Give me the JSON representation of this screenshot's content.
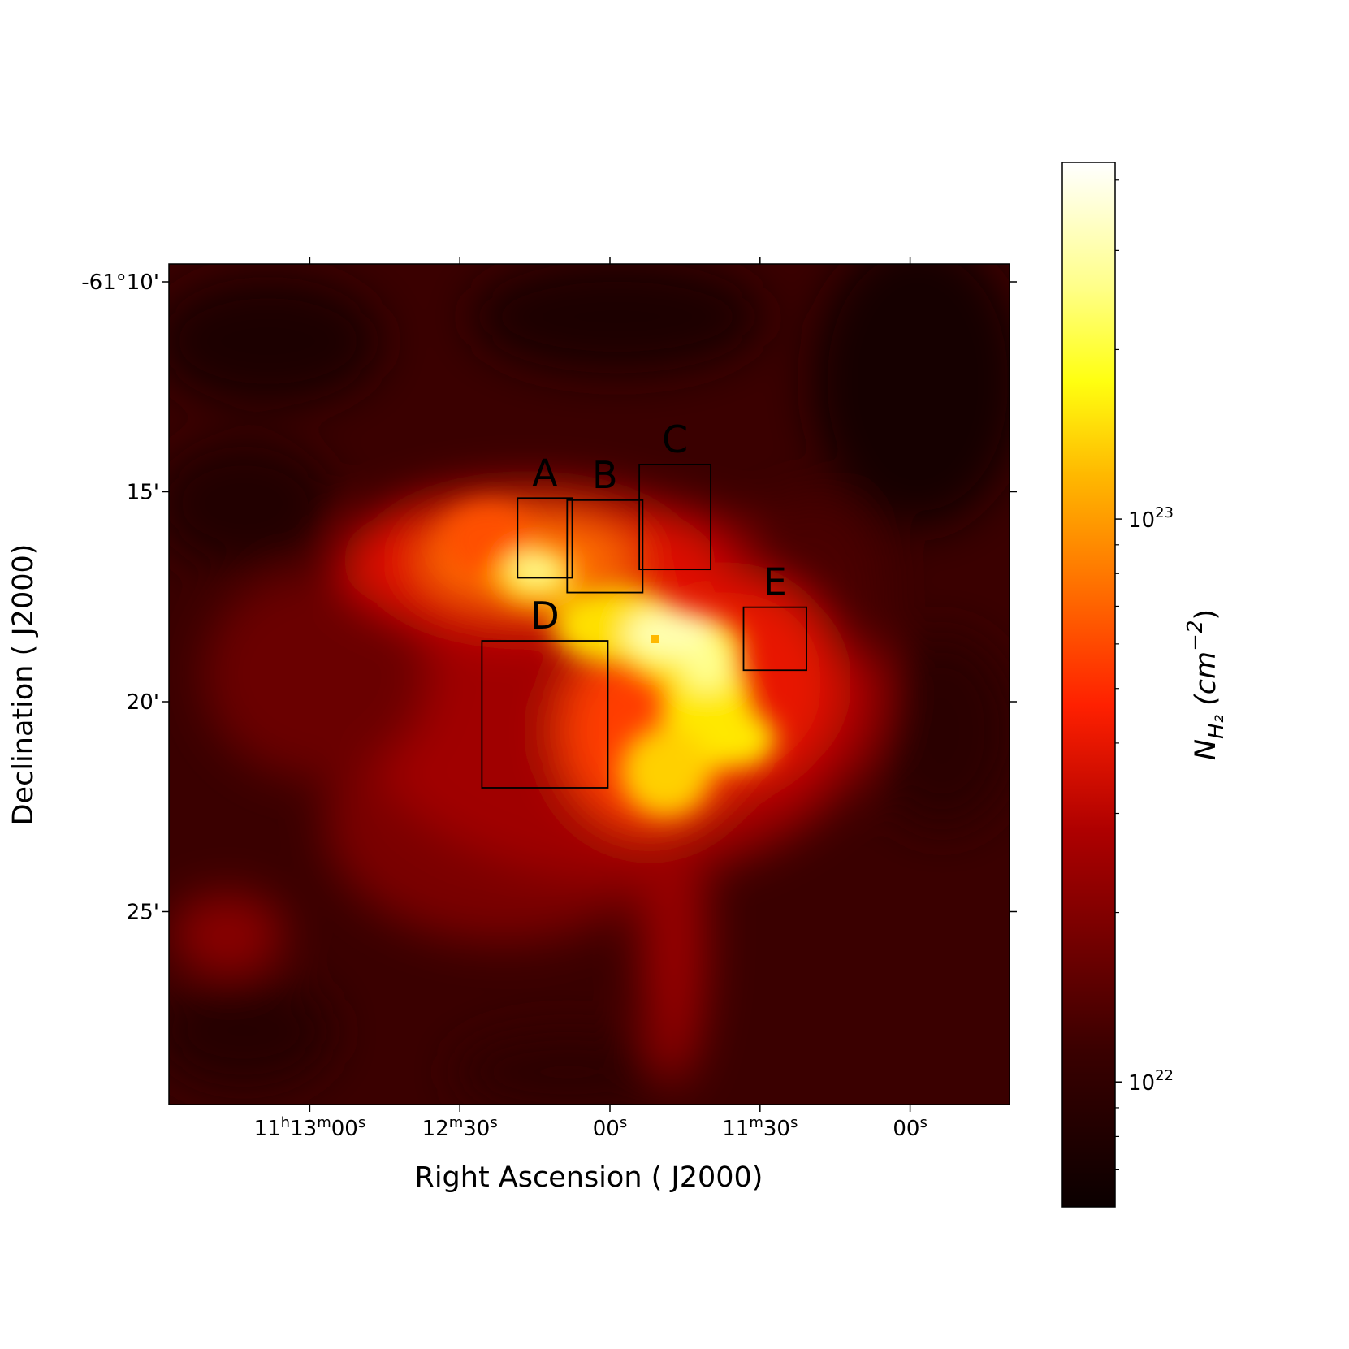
{
  "chart_data": {
    "type": "heatmap",
    "title": "",
    "xlabel": "Right Ascension ( J2000)",
    "ylabel": "Declination ( J2000)",
    "x_ticks": [
      {
        "ra": "11h13m00s",
        "parts": [
          [
            "11",
            "n"
          ],
          [
            "h",
            "s"
          ],
          [
            "13",
            "n"
          ],
          [
            "m",
            "s"
          ],
          [
            "00",
            "n"
          ],
          [
            "s",
            "s"
          ]
        ]
      },
      {
        "ra": "11h12m30s",
        "parts": [
          [
            "12",
            "n"
          ],
          [
            "m",
            "s"
          ],
          [
            "30",
            "n"
          ],
          [
            "s",
            "s"
          ]
        ]
      },
      {
        "ra": "11h12m00s",
        "parts": [
          [
            "00",
            "n"
          ],
          [
            "s",
            "s"
          ]
        ]
      },
      {
        "ra": "11h11m30s",
        "parts": [
          [
            "11",
            "n"
          ],
          [
            "m",
            "s"
          ],
          [
            "30",
            "n"
          ],
          [
            "s",
            "s"
          ]
        ]
      },
      {
        "ra": "11h11m00s",
        "parts": [
          [
            "00",
            "n"
          ],
          [
            "s",
            "s"
          ]
        ]
      }
    ],
    "y_ticks": [
      {
        "dec_arcmin": -10,
        "label": "-61°10'"
      },
      {
        "dec_arcmin": -15,
        "label": "15'"
      },
      {
        "dec_arcmin": -20,
        "label": "20'"
      },
      {
        "dec_arcmin": -25,
        "label": "25'"
      }
    ],
    "colorbar": {
      "label_main": "N",
      "label_sub": "H₂",
      "label_unit": " (cm",
      "label_exp": "−2",
      "label_close": ")",
      "scale": "log",
      "range": [
        6e+21,
        4.3e+23
      ],
      "colormap": "hot",
      "ticks": [
        {
          "value": 1e+22,
          "base": "10",
          "exp": "22"
        },
        {
          "value": 1e+23,
          "base": "10",
          "exp": "23"
        }
      ],
      "minor_ticks": [
        7e+21,
        8e+21,
        9e+21,
        2e+22,
        3e+22,
        4e+22,
        5e+22,
        6e+22,
        7e+22,
        8e+22,
        9e+22,
        2e+23,
        3e+23,
        4e+23
      ]
    },
    "regions": [
      {
        "name": "A",
        "ra": "11h12m13s",
        "dec": "-61°16.1'",
        "width_arcmin": 1.3,
        "height_arcmin": 1.9
      },
      {
        "name": "B",
        "ra": "11h12m01s",
        "dec": "-61°16.3'",
        "width_arcmin": 1.8,
        "height_arcmin": 2.2
      },
      {
        "name": "C",
        "ra": "11h11m47s",
        "dec": "-61°15.6'",
        "width_arcmin": 1.7,
        "height_arcmin": 2.5
      },
      {
        "name": "D",
        "ra": "11h12m13s",
        "dec": "-61°20.3'",
        "width_arcmin": 3.0,
        "height_arcmin": 3.5
      },
      {
        "name": "E",
        "ra": "11h11m27s",
        "dec": "-61°18.5'",
        "width_arcmin": 1.5,
        "height_arcmin": 1.5
      }
    ],
    "peak_column_density": 4.3e+23,
    "peak_ra": "11h11m51s",
    "peak_dec": "-61°18'"
  }
}
